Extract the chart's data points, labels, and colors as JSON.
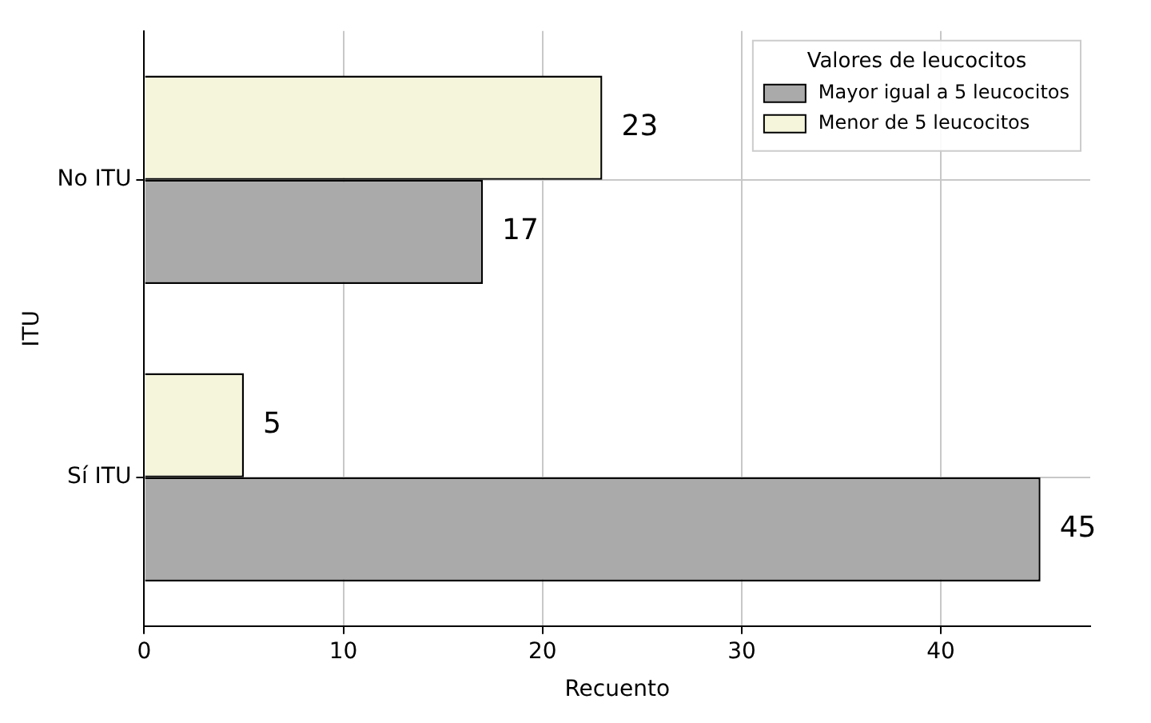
{
  "chart_data": {
    "type": "bar",
    "orientation": "horizontal",
    "xlabel": "Recuento",
    "ylabel": "ITU",
    "legend_title": "Valores de leucocitos",
    "categories": [
      "No ITU",
      "Sí ITU"
    ],
    "series": [
      {
        "name": "Mayor igual a 5 leucocitos",
        "color": "#aaaaaa",
        "values": [
          17,
          45
        ]
      },
      {
        "name": "Menor de 5 leucocitos",
        "color": "#f5f5dc",
        "values": [
          23,
          5
        ]
      }
    ],
    "xlim": [
      0,
      47.5
    ],
    "xticks": [
      0,
      10,
      20,
      30,
      40
    ],
    "grid": true,
    "legend": "top right",
    "data_labels": true
  }
}
